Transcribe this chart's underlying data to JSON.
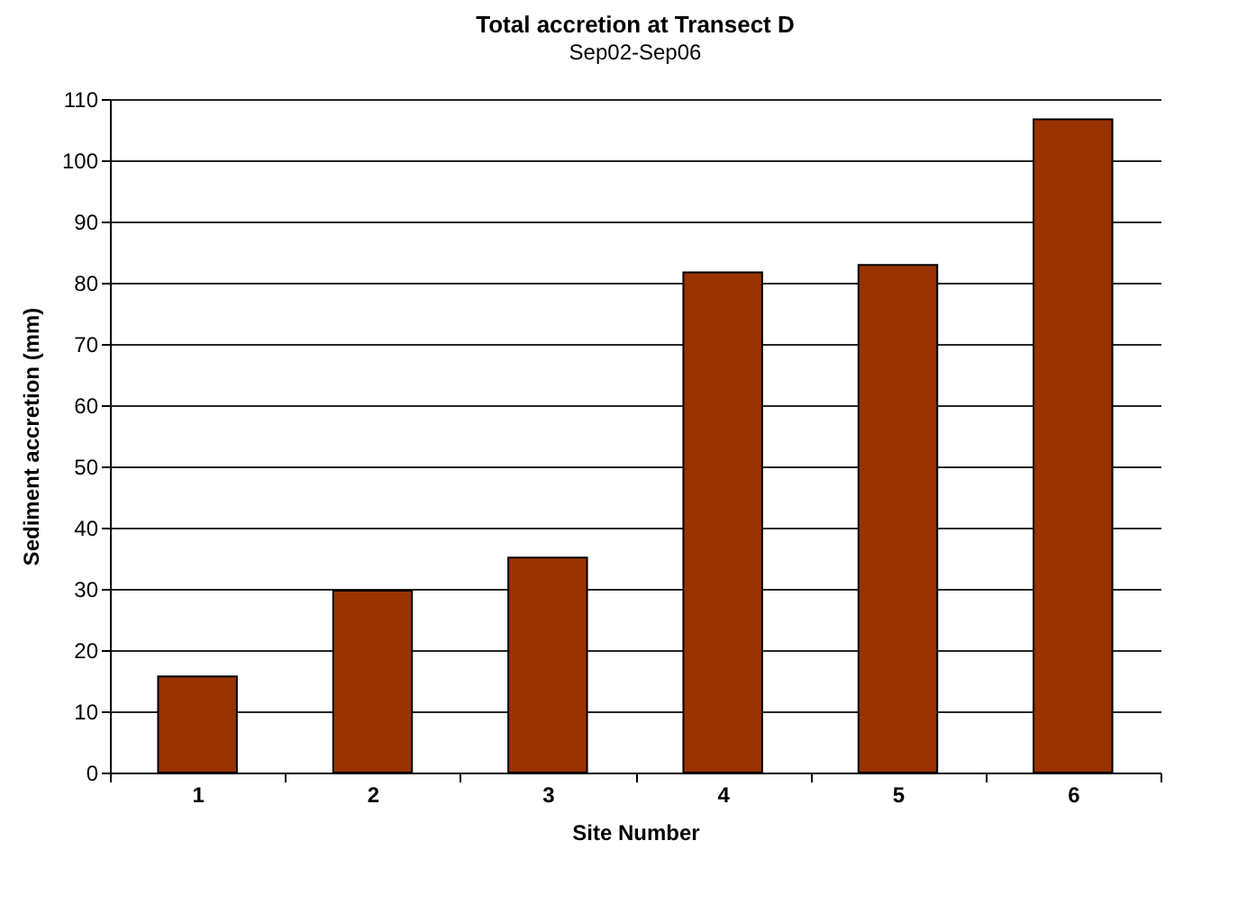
{
  "chart_data": {
    "type": "bar",
    "title": "Total accretion at Transect D",
    "subtitle": "Sep02-Sep06",
    "xlabel": "Site Number",
    "ylabel": "Sediment accretion (mm)",
    "categories": [
      "1",
      "2",
      "3",
      "4",
      "5",
      "6"
    ],
    "values": [
      15.7,
      29.7,
      35.1,
      81.7,
      82.9,
      106.7
    ],
    "color": "#993300",
    "ylim": [
      0,
      110
    ],
    "yticks": [
      0,
      10,
      20,
      30,
      40,
      50,
      60,
      70,
      80,
      90,
      100,
      110
    ],
    "grid": "y"
  }
}
